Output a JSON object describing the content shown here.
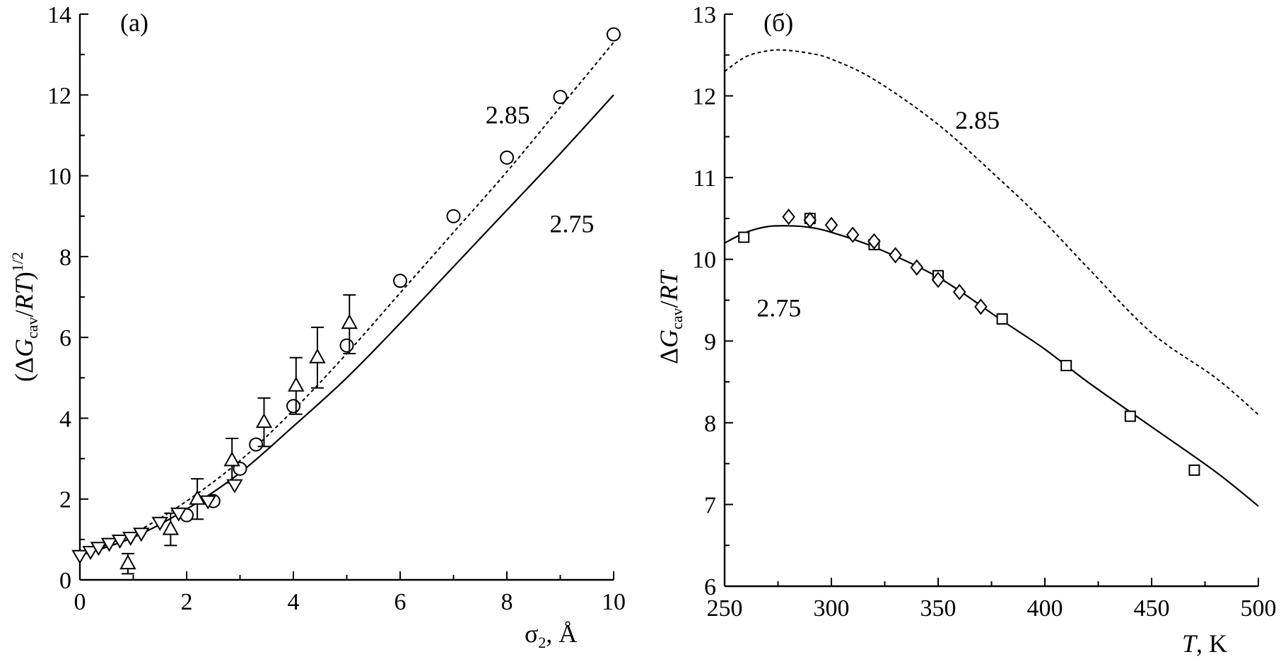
{
  "chart_data": [
    {
      "type": "scatter",
      "panel_label": "(a)",
      "xlabel_symbol": "σ",
      "xlabel_sub": "2",
      "xlabel_unit": ", Å",
      "ylabel_open": "(Δ",
      "ylabel_var": "G",
      "ylabel_sub": "cav",
      "ylabel_mid": "/",
      "ylabel_var2": "RT",
      "ylabel_close": ")",
      "ylabel_sup": "1/2",
      "xlim": [
        0,
        10
      ],
      "ylim": [
        0,
        14
      ],
      "xticks": [
        "0",
        "2",
        "4",
        "6",
        "8",
        "10"
      ],
      "xtick_values": [
        0,
        2,
        4,
        6,
        8,
        10
      ],
      "yticks": [
        "0",
        "2",
        "4",
        "6",
        "8",
        "10",
        "12",
        "14"
      ],
      "ytick_values": [
        0,
        2,
        4,
        6,
        8,
        10,
        12,
        14
      ],
      "curves": [
        {
          "label": "2.85",
          "style": "dashed",
          "label_at": [
            7.6,
            11.3
          ],
          "x": [
            0,
            1,
            2,
            3,
            4,
            5,
            6,
            7,
            8,
            9,
            10
          ],
          "y": [
            0.6,
            1.15,
            1.95,
            2.95,
            4.2,
            5.6,
            7.1,
            8.6,
            10.1,
            11.7,
            13.3
          ]
        },
        {
          "label": "2.75",
          "style": "solid",
          "label_at": [
            8.8,
            8.6
          ],
          "x": [
            0,
            1,
            2,
            3,
            4,
            5,
            6,
            7,
            8,
            9,
            10
          ],
          "y": [
            0.6,
            1.05,
            1.75,
            2.65,
            3.8,
            5.0,
            6.35,
            7.75,
            9.15,
            10.55,
            12.0
          ]
        }
      ],
      "series": [
        {
          "marker": "circle",
          "points": [
            [
              2.0,
              1.6
            ],
            [
              2.5,
              1.95
            ],
            [
              3.0,
              2.75
            ],
            [
              3.3,
              3.35
            ],
            [
              4.0,
              4.3
            ],
            [
              5.0,
              5.8
            ],
            [
              6.0,
              7.4
            ],
            [
              7.0,
              9.0
            ],
            [
              8.0,
              10.45
            ],
            [
              9.0,
              11.95
            ],
            [
              10.0,
              13.5
            ]
          ]
        },
        {
          "marker": "triangle-up",
          "points": [
            [
              0.9,
              0.4
            ],
            [
              1.7,
              1.25
            ],
            [
              2.2,
              2.0
            ],
            [
              2.85,
              2.95
            ],
            [
              3.45,
              3.9
            ],
            [
              4.05,
              4.8
            ],
            [
              4.45,
              5.5
            ],
            [
              5.05,
              6.35
            ]
          ],
          "errors": [
            [
              0.9,
              0.15,
              0.65
            ],
            [
              1.7,
              0.85,
              1.65
            ],
            [
              2.2,
              1.5,
              2.5
            ],
            [
              2.85,
              2.4,
              3.5
            ],
            [
              3.45,
              3.3,
              4.5
            ],
            [
              4.05,
              4.1,
              5.5
            ],
            [
              4.45,
              4.75,
              6.25
            ],
            [
              5.05,
              5.6,
              7.05
            ]
          ]
        },
        {
          "marker": "triangle-down",
          "points": [
            [
              0.0,
              0.6
            ],
            [
              0.2,
              0.7
            ],
            [
              0.35,
              0.8
            ],
            [
              0.55,
              0.9
            ],
            [
              0.75,
              0.98
            ],
            [
              0.95,
              1.05
            ],
            [
              1.15,
              1.15
            ],
            [
              1.5,
              1.42
            ],
            [
              1.85,
              1.65
            ],
            [
              2.4,
              1.95
            ],
            [
              2.9,
              2.35
            ]
          ]
        }
      ]
    },
    {
      "type": "scatter",
      "panel_label": "(б)",
      "xlabel_var": "T",
      "xlabel_unit": ", K",
      "ylabel_open": "Δ",
      "ylabel_var": "G",
      "ylabel_sub": "cav",
      "ylabel_mid": "/",
      "ylabel_var2": "RT",
      "xlim": [
        250,
        500
      ],
      "ylim": [
        6,
        13
      ],
      "xticks": [
        "250",
        "300",
        "350",
        "400",
        "450",
        "500"
      ],
      "xtick_values": [
        250,
        300,
        350,
        400,
        450,
        500
      ],
      "yticks": [
        "6",
        "7",
        "8",
        "9",
        "10",
        "11",
        "12",
        "13"
      ],
      "ytick_values": [
        6,
        7,
        8,
        9,
        10,
        11,
        12,
        13
      ],
      "curves": [
        {
          "label": "2.85",
          "style": "dashed",
          "label_at": [
            358,
            11.6
          ],
          "x": [
            250,
            260,
            270,
            278,
            290,
            300,
            320,
            350,
            380,
            400,
            420,
            450,
            480,
            500
          ],
          "y": [
            12.3,
            12.48,
            12.55,
            12.56,
            12.52,
            12.45,
            12.2,
            11.65,
            10.95,
            10.45,
            9.9,
            9.1,
            8.55,
            8.1
          ]
        },
        {
          "label": "2.75",
          "style": "solid",
          "label_at": [
            265,
            9.3
          ],
          "x": [
            250,
            260,
            270,
            280,
            290,
            300,
            320,
            350,
            380,
            400,
            420,
            450,
            480,
            500
          ],
          "y": [
            10.2,
            10.33,
            10.4,
            10.41,
            10.39,
            10.33,
            10.15,
            9.78,
            9.25,
            8.9,
            8.5,
            7.95,
            7.4,
            6.98
          ]
        }
      ],
      "series": [
        {
          "marker": "square",
          "points": [
            [
              259,
              10.27
            ],
            [
              290,
              10.5
            ],
            [
              320,
              10.18
            ],
            [
              350,
              9.8
            ],
            [
              380,
              9.27
            ],
            [
              410,
              8.7
            ],
            [
              440,
              8.08
            ],
            [
              470,
              7.42
            ]
          ]
        },
        {
          "marker": "diamond",
          "points": [
            [
              280,
              10.52
            ],
            [
              290,
              10.48
            ],
            [
              300,
              10.42
            ],
            [
              310,
              10.3
            ],
            [
              320,
              10.22
            ],
            [
              330,
              10.05
            ],
            [
              340,
              9.9
            ],
            [
              350,
              9.75
            ],
            [
              360,
              9.6
            ],
            [
              370,
              9.42
            ]
          ]
        }
      ]
    }
  ]
}
